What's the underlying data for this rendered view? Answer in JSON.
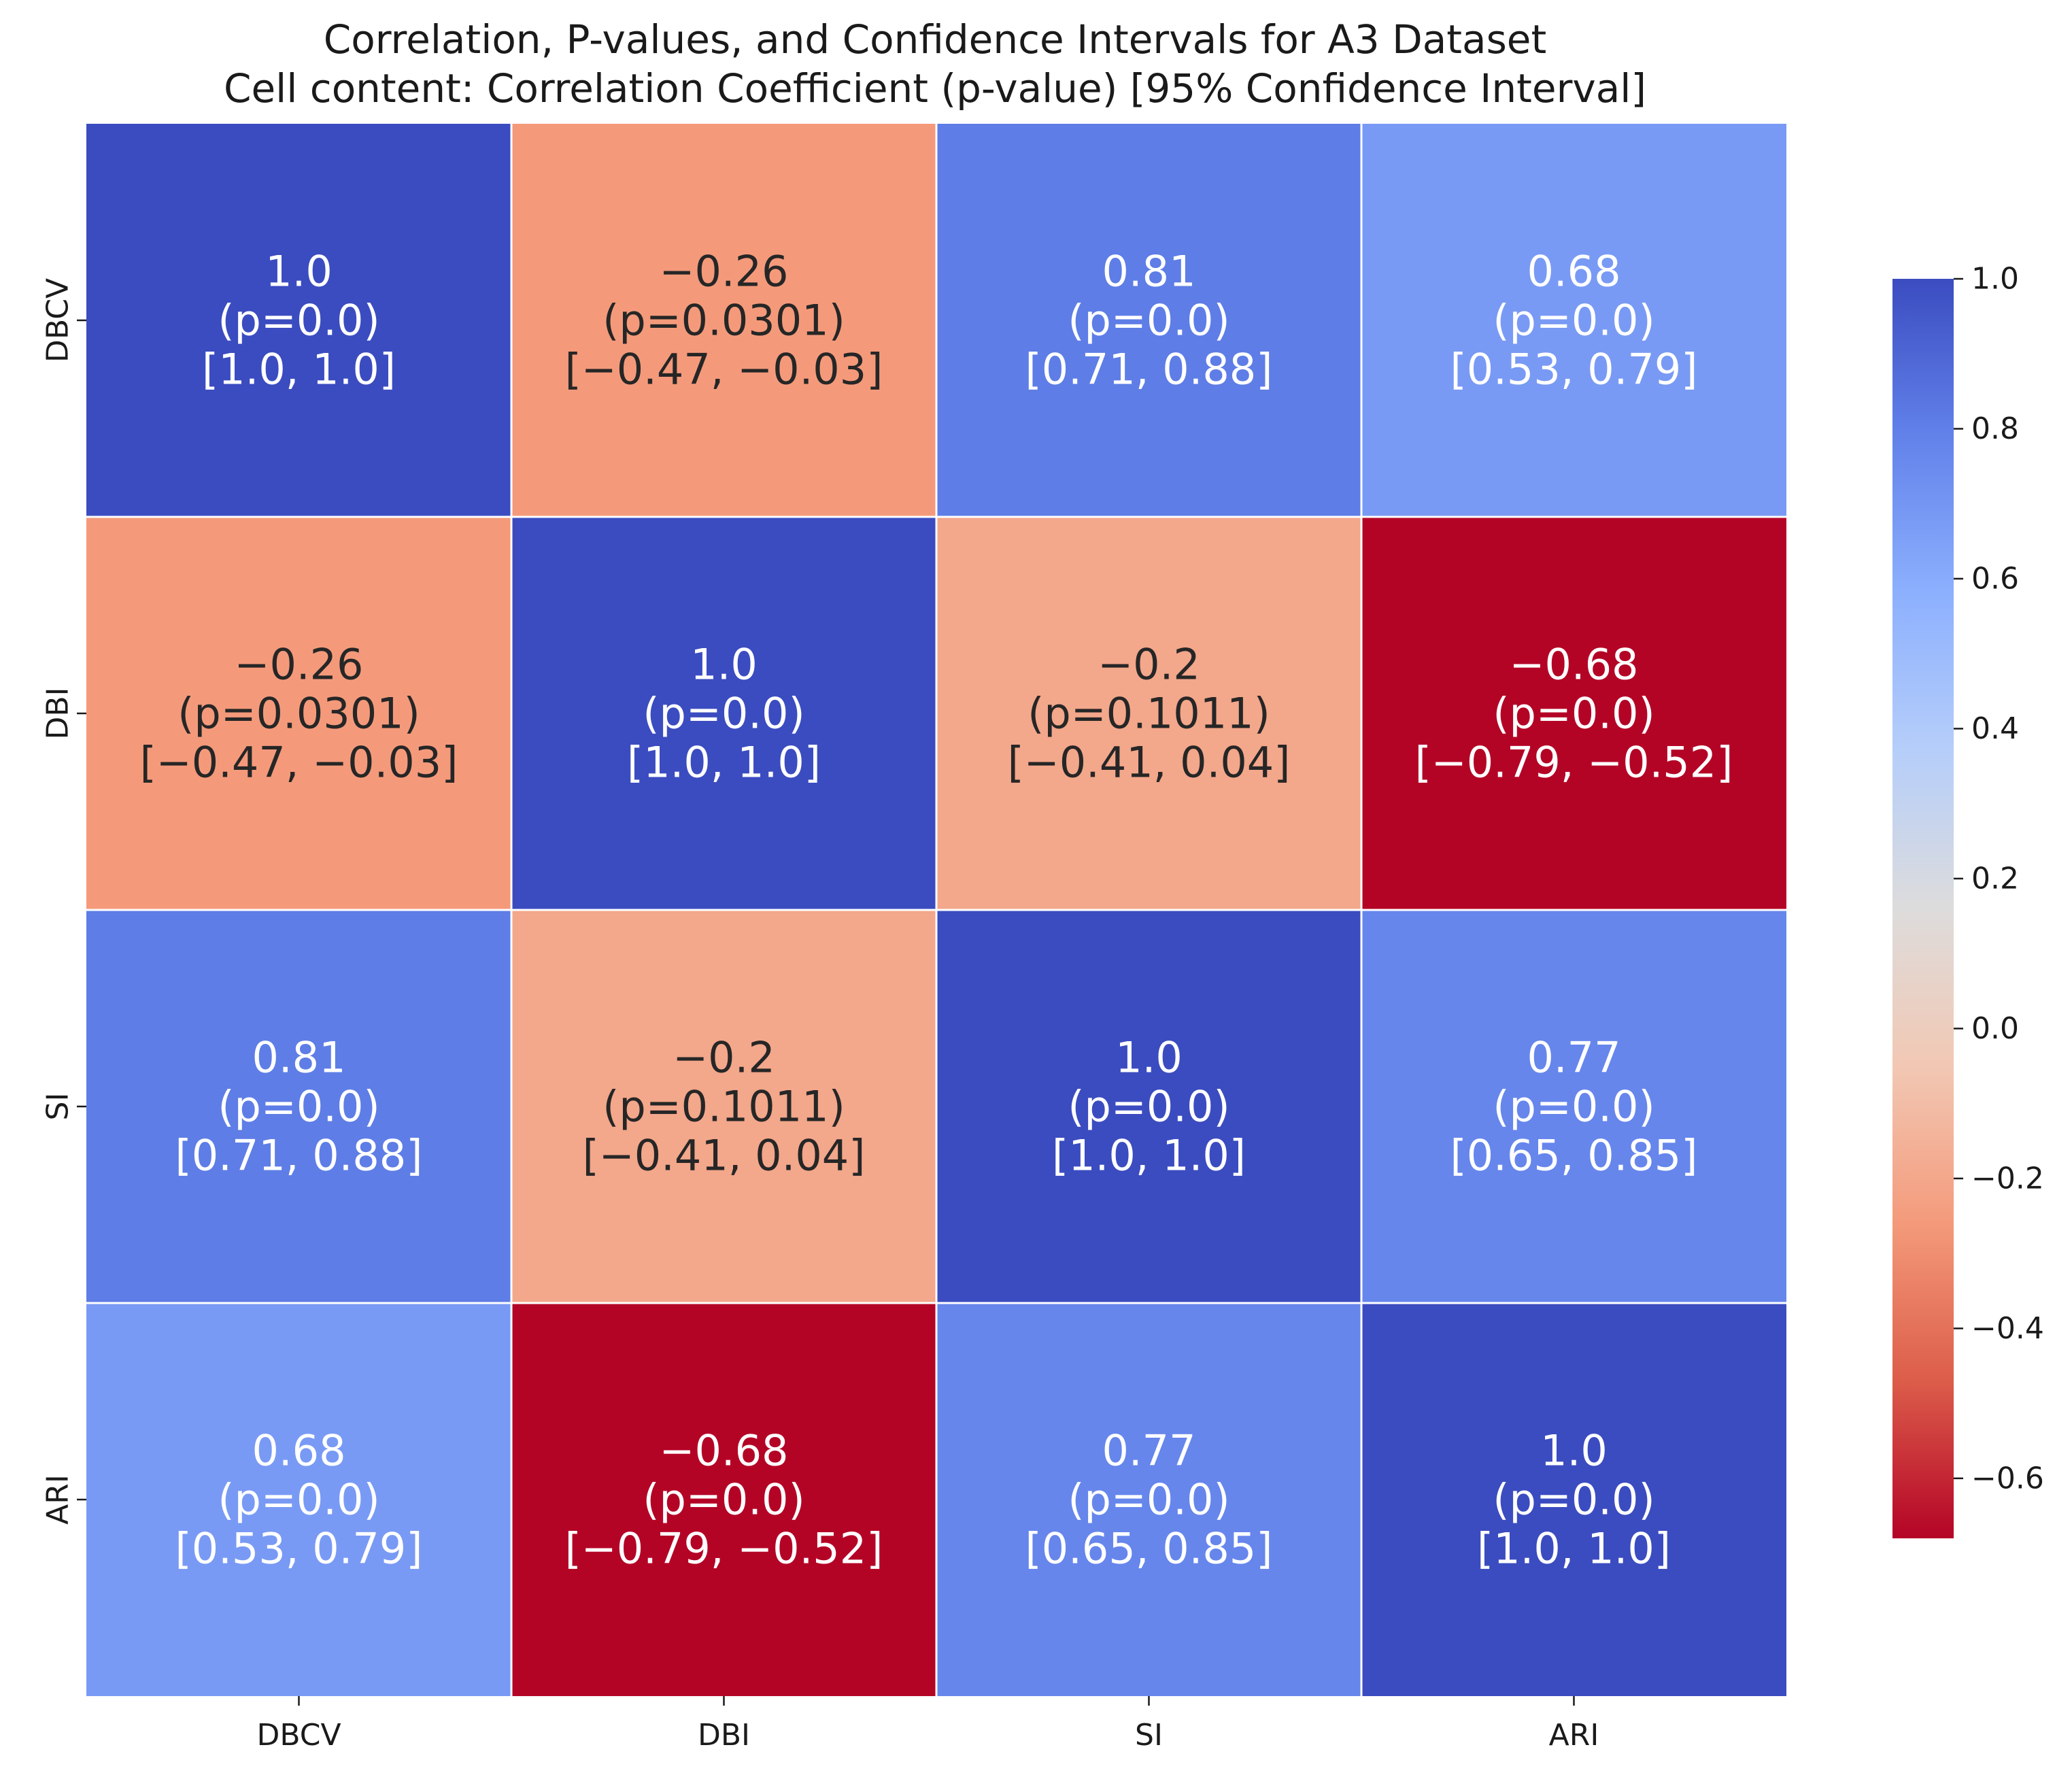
{
  "chart_data": {
    "type": "heatmap",
    "title": "Correlation, P-values, and Confidence Intervals for A3 Dataset",
    "subtitle": "Cell content: Correlation Coefficient (p-value) [95% Confidence Interval]",
    "row_labels": [
      "DBCV",
      "DBI",
      "SI",
      "ARI"
    ],
    "col_labels": [
      "DBCV",
      "DBI",
      "SI",
      "ARI"
    ],
    "values": [
      [
        1.0,
        -0.26,
        0.81,
        0.68
      ],
      [
        -0.26,
        1.0,
        -0.2,
        -0.68
      ],
      [
        0.81,
        -0.2,
        1.0,
        0.77
      ],
      [
        0.68,
        -0.68,
        0.77,
        1.0
      ]
    ],
    "cells": [
      [
        {
          "r": "1.0",
          "p": "(p=0.0)",
          "ci": "[1.0, 1.0]"
        },
        {
          "r": "−0.26",
          "p": "(p=0.0301)",
          "ci": "[−0.47, −0.03]"
        },
        {
          "r": "0.81",
          "p": "(p=0.0)",
          "ci": "[0.71, 0.88]"
        },
        {
          "r": "0.68",
          "p": "(p=0.0)",
          "ci": "[0.53, 0.79]"
        }
      ],
      [
        {
          "r": "−0.26",
          "p": "(p=0.0301)",
          "ci": "[−0.47, −0.03]"
        },
        {
          "r": "1.0",
          "p": "(p=0.0)",
          "ci": "[1.0, 1.0]"
        },
        {
          "r": "−0.2",
          "p": "(p=0.1011)",
          "ci": "[−0.41, 0.04]"
        },
        {
          "r": "−0.68",
          "p": "(p=0.0)",
          "ci": "[−0.79, −0.52]"
        }
      ],
      [
        {
          "r": "0.81",
          "p": "(p=0.0)",
          "ci": "[0.71, 0.88]"
        },
        {
          "r": "−0.2",
          "p": "(p=0.1011)",
          "ci": "[−0.41, 0.04]"
        },
        {
          "r": "1.0",
          "p": "(p=0.0)",
          "ci": "[1.0, 1.0]"
        },
        {
          "r": "0.77",
          "p": "(p=0.0)",
          "ci": "[0.65, 0.85]"
        }
      ],
      [
        {
          "r": "0.68",
          "p": "(p=0.0)",
          "ci": "[0.53, 0.79]"
        },
        {
          "r": "−0.68",
          "p": "(p=0.0)",
          "ci": "[−0.79, −0.52]"
        },
        {
          "r": "0.77",
          "p": "(p=0.0)",
          "ci": "[0.65, 0.85]"
        },
        {
          "r": "1.0",
          "p": "(p=0.0)",
          "ci": "[1.0, 1.0]"
        }
      ]
    ],
    "colorbar": {
      "colormap": "coolwarm_r",
      "vmin": -0.68,
      "vmax": 1.0,
      "ticks": [
        1.0,
        0.8,
        0.6,
        0.4,
        0.2,
        0.0,
        -0.2,
        -0.4,
        -0.6
      ],
      "tick_labels": [
        "1.0",
        "0.8",
        "0.6",
        "0.4",
        "0.2",
        "0.0",
        "−0.2",
        "−0.4",
        "−0.6"
      ]
    },
    "colormap_stops": [
      {
        "t": 0.0,
        "color": "#b40426"
      },
      {
        "t": 0.125,
        "color": "#dc5d4a"
      },
      {
        "t": 0.25,
        "color": "#f49a7b"
      },
      {
        "t": 0.375,
        "color": "#f2c8b4"
      },
      {
        "t": 0.5,
        "color": "#dddcdc"
      },
      {
        "t": 0.625,
        "color": "#b6cefa"
      },
      {
        "t": 0.75,
        "color": "#8db0fe"
      },
      {
        "t": 0.875,
        "color": "#6282ea"
      },
      {
        "t": 1.0,
        "color": "#3b4cc0"
      }
    ],
    "text_colors": {
      "light": "#ffffff",
      "dark": "#262626"
    },
    "grid_line_color": "#ffffff"
  }
}
